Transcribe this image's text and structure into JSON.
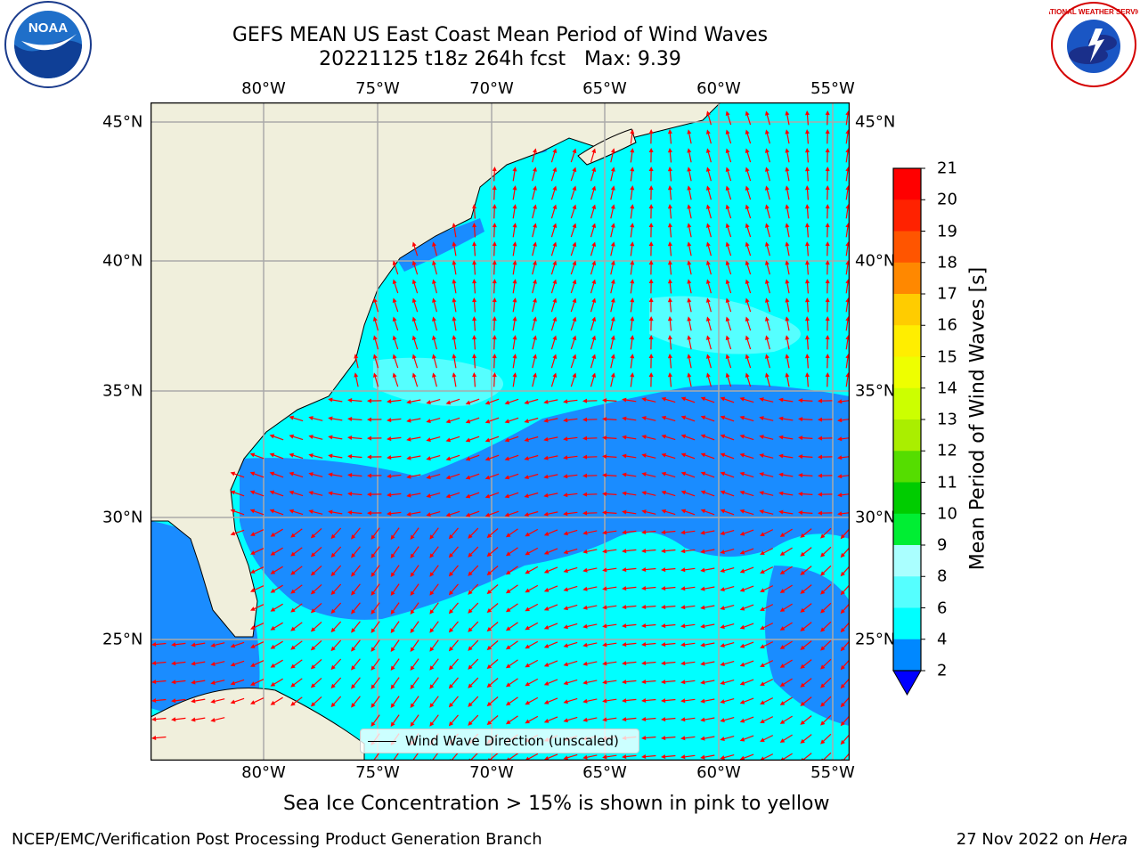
{
  "title_line1": "GEFS MEAN US East Coast Mean Period of Wind Waves",
  "title_line2": "20221125 t18z 264h fcst   Max: 9.39",
  "lon_labels": [
    "80°W",
    "75°W",
    "70°W",
    "65°W",
    "60°W",
    "55°W"
  ],
  "lat_labels": [
    "45°N",
    "40°N",
    "35°N",
    "30°N",
    "25°N"
  ],
  "legend_label": "Wind Wave Direction (unscaled)",
  "colorbar": {
    "label": "Mean Period of Wind Waves [s]",
    "ticks": [
      "21",
      "20",
      "19",
      "18",
      "17",
      "16",
      "15",
      "14",
      "13",
      "12",
      "11",
      "10",
      "9",
      "8",
      "6",
      "4",
      "2"
    ],
    "colors": [
      "#ff0000",
      "#ff2200",
      "#ff5500",
      "#ff8800",
      "#ffaa00",
      "#ffcc00",
      "#ffee00",
      "#eeff00",
      "#ccff00",
      "#aaee00",
      "#55dd00",
      "#00cc00",
      "#00ee33",
      "#44ee77",
      "#aaffff",
      "#55ffff",
      "#00ffff",
      "#0088ff"
    ],
    "under_color": "#0000ff"
  },
  "sea_ice_note": "Sea Ice Concentration > 15% is shown in pink to yellow",
  "footer_left": "NCEP/EMC/Verification Post Processing Product Generation Branch",
  "footer_date": "27 Nov 2022 on ",
  "footer_machine": "Hera",
  "logos": {
    "left": "NOAA",
    "right_text": "NATIONAL WEATHER SERVICE"
  },
  "colors": {
    "land": "#f0efdc",
    "sea": "#00ffff",
    "sea_dark": "#1a8cff",
    "arrow": "#ff0000",
    "grid": "#aaaaaa"
  }
}
